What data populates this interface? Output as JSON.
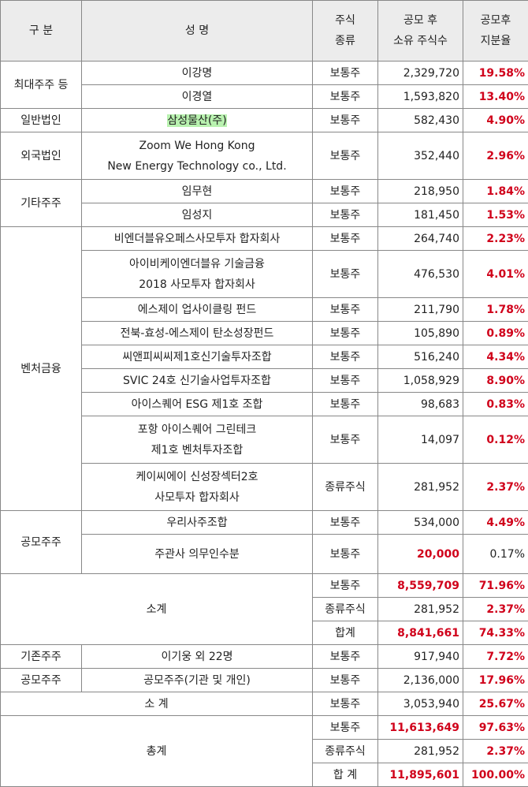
{
  "header": [
    [
      "구 분"
    ],
    [
      "성 명"
    ],
    [
      "주식",
      "종류"
    ],
    [
      "공모 후",
      "소유 주식수"
    ],
    [
      "공모후",
      "지분율"
    ]
  ],
  "emphasis_color": "#d0021b",
  "groups": [
    {
      "category": "최대주주 등",
      "rows": [
        {
          "name": [
            "이강명"
          ],
          "type": "보통주",
          "shares": "2,329,720",
          "ratio": "19.58%",
          "ratio_red": true
        },
        {
          "name": [
            "이경열"
          ],
          "type": "보통주",
          "shares": "1,593,820",
          "ratio": "13.40%",
          "ratio_red": true
        }
      ]
    },
    {
      "category": "일반법인",
      "rows": [
        {
          "name": [
            "삼성물산(주)"
          ],
          "type": "보통주",
          "shares": "582,430",
          "ratio": "4.90%",
          "ratio_red": true,
          "highlight": "#b9f2b0"
        }
      ]
    },
    {
      "category": "외국법인",
      "rows": [
        {
          "name": [
            "Zoom We Hong Kong",
            "New Energy Technology co., Ltd."
          ],
          "type": "보통주",
          "shares": "352,440",
          "ratio": "2.96%",
          "ratio_red": true
        }
      ]
    },
    {
      "category": "기타주주",
      "rows": [
        {
          "name": [
            "임무현"
          ],
          "type": "보통주",
          "shares": "218,950",
          "ratio": "1.84%",
          "ratio_red": true
        },
        {
          "name": [
            "임성지"
          ],
          "type": "보통주",
          "shares": "181,450",
          "ratio": "1.53%",
          "ratio_red": true
        }
      ]
    },
    {
      "category": "벤처금융",
      "rows": [
        {
          "name": [
            "비엔더블유오페스사모투자 합자회사"
          ],
          "type": "보통주",
          "shares": "264,740",
          "ratio": "2.23%",
          "ratio_red": true
        },
        {
          "name": [
            "아이비케이엔더블유 기술금융",
            "2018 사모투자 합자회사"
          ],
          "type": "보통주",
          "shares": "476,530",
          "ratio": "4.01%",
          "ratio_red": true
        },
        {
          "name": [
            "에스제이 업사이클링 펀드"
          ],
          "type": "보통주",
          "shares": "211,790",
          "ratio": "1.78%",
          "ratio_red": true
        },
        {
          "name": [
            "전북-효성-에스제이 탄소성장펀드"
          ],
          "type": "보통주",
          "shares": "105,890",
          "ratio": "0.89%",
          "ratio_red": true
        },
        {
          "name": [
            "씨앤피씨씨제1호신기술투자조합"
          ],
          "type": "보통주",
          "shares": "516,240",
          "ratio": "4.34%",
          "ratio_red": true
        },
        {
          "name": [
            "SVIC 24호 신기술사업투자조합"
          ],
          "type": "보통주",
          "shares": "1,058,929",
          "ratio": "8.90%",
          "ratio_red": true
        },
        {
          "name": [
            "아이스퀘어 ESG 제1호 조합"
          ],
          "type": "보통주",
          "shares": "98,683",
          "ratio": "0.83%",
          "ratio_red": true
        },
        {
          "name": [
            "포항 아이스퀘어 그린테크",
            "제1호 벤처투자조합"
          ],
          "type": "보통주",
          "shares": "14,097",
          "ratio": "0.12%",
          "ratio_red": true
        },
        {
          "name": [
            "케이씨에이 신성장섹터2호",
            "사모투자 합자회사"
          ],
          "type": "종류주식",
          "shares": "281,952",
          "ratio": "2.37%",
          "ratio_red": true
        }
      ]
    },
    {
      "category": "공모주주",
      "rows": [
        {
          "name": [
            "우리사주조합"
          ],
          "type": "보통주",
          "shares": "534,000",
          "ratio": "4.49%",
          "ratio_red": true
        },
        {
          "name": [
            "주관사 의무인수분"
          ],
          "type": "보통주",
          "shares": "20,000",
          "shares_red": true,
          "ratio": "0.17%",
          "tall": true
        }
      ]
    },
    {
      "label": "소계",
      "rows": [
        {
          "type": "보통주",
          "shares": "8,559,709",
          "shares_red": true,
          "ratio": "71.96%",
          "ratio_red": true
        },
        {
          "type": "종류주식",
          "shares": "281,952",
          "ratio": "2.37%",
          "ratio_red": true
        },
        {
          "type": "합계",
          "shares": "8,841,661",
          "shares_red": true,
          "ratio": "74.33%",
          "ratio_red": true
        }
      ]
    },
    {
      "category": "기존주주",
      "rows": [
        {
          "name": [
            "이기웅 외 22명"
          ],
          "type": "보통주",
          "shares": "917,940",
          "ratio": "7.72%",
          "ratio_red": true
        }
      ]
    },
    {
      "category": "공모주주",
      "rows": [
        {
          "name": [
            "공모주주(기관 및 개인)"
          ],
          "type": "보통주",
          "shares": "2,136,000",
          "ratio": "17.96%",
          "ratio_red": true
        }
      ]
    },
    {
      "label": "소 계",
      "rows": [
        {
          "type": "보통주",
          "shares": "3,053,940",
          "ratio": "25.67%",
          "ratio_red": true
        }
      ]
    },
    {
      "label": "총계",
      "rows": [
        {
          "type": "보통주",
          "shares": "11,613,649",
          "shares_red": true,
          "ratio": "97.63%",
          "ratio_red": true
        },
        {
          "type": "종류주식",
          "shares": "281,952",
          "ratio": "2.37%",
          "ratio_red": true
        },
        {
          "type": "합 계",
          "shares": "11,895,601",
          "shares_red": true,
          "ratio": "100.00%",
          "ratio_red": true
        }
      ]
    }
  ]
}
